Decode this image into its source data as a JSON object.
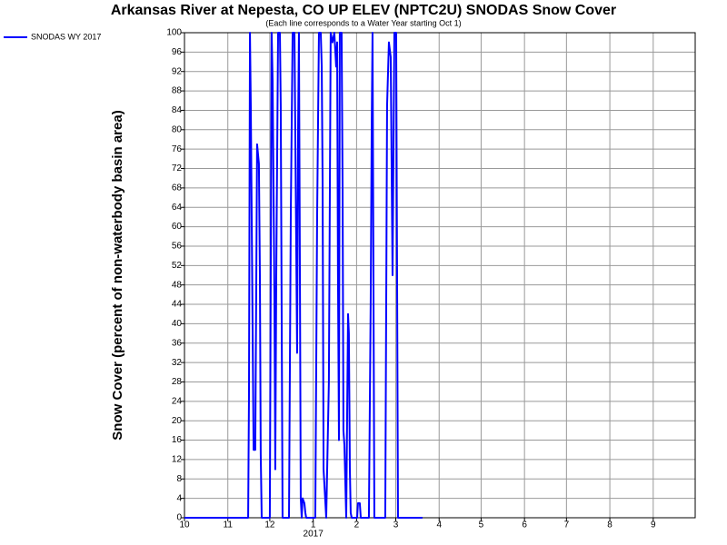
{
  "chart_data": {
    "type": "line",
    "title": "Arkansas River at Nepesta, CO UP ELEV (NPTC2U) SNODAS Snow Cover",
    "subtitle": "(Each line corresponds to a Water Year starting Oct 1)",
    "y_label": "Snow Cover (percent of non-waterbody basin area)",
    "xlim": [
      0,
      365
    ],
    "ylim": [
      0,
      100
    ],
    "yticks": [
      0,
      4,
      8,
      12,
      16,
      20,
      24,
      28,
      32,
      36,
      40,
      44,
      48,
      52,
      56,
      60,
      64,
      68,
      72,
      76,
      80,
      84,
      88,
      92,
      96,
      100
    ],
    "xticks": [
      {
        "value": 0,
        "label": "10"
      },
      {
        "value": 31,
        "label": "11"
      },
      {
        "value": 61,
        "label": "12"
      },
      {
        "value": 92,
        "label": "1"
      },
      {
        "value": 123,
        "label": "2"
      },
      {
        "value": 151,
        "label": "3"
      },
      {
        "value": 182,
        "label": "4"
      },
      {
        "value": 212,
        "label": "5"
      },
      {
        "value": 243,
        "label": "6"
      },
      {
        "value": 273,
        "label": "7"
      },
      {
        "value": 304,
        "label": "8"
      },
      {
        "value": 335,
        "label": "9"
      }
    ],
    "year_label": {
      "value": 92,
      "label": "2017"
    },
    "grid": true,
    "legend": "top-left",
    "series": [
      {
        "name": "SNODAS WY 2017",
        "color": "#0000ff",
        "x": [
          0,
          45.5,
          46.1,
          46.8,
          47.4,
          48.1,
          49.4,
          50.6,
          51.9,
          53.2,
          53.9,
          54.5,
          55.2,
          61.0,
          62.3,
          63.0,
          64.3,
          64.9,
          65.6,
          66.9,
          68.2,
          68.8,
          69.5,
          70.1,
          74.7,
          76.0,
          77.3,
          78.6,
          79.9,
          80.5,
          81.2,
          81.8,
          82.5,
          83.1,
          83.8,
          84.4,
          85.7,
          86.4,
          87.0,
          93.5,
          94.8,
          96.1,
          97.4,
          98.1,
          98.7,
          99.4,
          101.3,
          103.2,
          104.5,
          105.8,
          107.1,
          108.4,
          109.1,
          109.7,
          110.4,
          111.0,
          112.3,
          113.0,
          113.6,
          114.3,
          115.6,
          116.9,
          117.5,
          118.2,
          118.8,
          119.5,
          123.4,
          124.0,
          125.3,
          126.0,
          131.8,
          133.1,
          133.8,
          134.4,
          135.7,
          143.5,
          144.8,
          146.1,
          147.4,
          148.7,
          150.0,
          151.3,
          152.6,
          154.5,
          170.1
        ],
        "values": [
          0,
          0,
          25,
          100,
          85,
          60,
          14,
          14,
          77,
          73,
          50,
          13,
          0,
          0,
          100,
          90,
          45,
          10,
          50,
          100,
          100,
          85,
          40,
          0,
          0,
          63,
          100,
          100,
          55,
          34,
          80,
          100,
          50,
          4,
          0,
          4,
          3,
          1,
          0,
          0,
          62,
          100,
          100,
          93,
          70,
          10,
          0,
          28,
          100,
          98,
          100,
          93,
          98,
          50,
          16,
          100,
          100,
          68,
          18,
          15,
          0,
          42,
          38,
          10,
          1,
          0,
          0,
          3,
          3,
          0,
          0,
          45,
          80,
          100,
          0,
          0,
          85,
          98,
          95,
          50,
          100,
          100,
          0,
          0,
          0
        ]
      }
    ]
  }
}
